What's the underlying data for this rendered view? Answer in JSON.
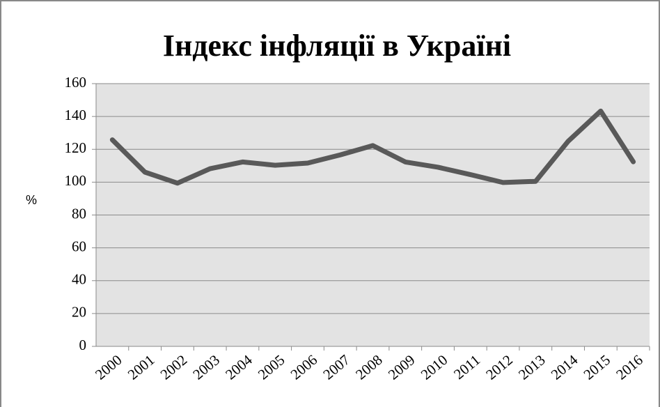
{
  "chart_data": {
    "type": "line",
    "title": "Індекс інфляції в Україні",
    "y_label": "%",
    "categories": [
      "2000",
      "2001",
      "2002",
      "2003",
      "2004",
      "2005",
      "2006",
      "2007",
      "2008",
      "2009",
      "2010",
      "2011",
      "2012",
      "2013",
      "2014",
      "2015",
      "2016"
    ],
    "values": [
      125.8,
      106.1,
      99.4,
      108.2,
      112.3,
      110.3,
      111.6,
      116.6,
      122.3,
      112.3,
      109.1,
      104.6,
      99.8,
      100.5,
      124.9,
      143.3,
      112.4
    ],
    "color": "#595959",
    "ylim": [
      0,
      160
    ],
    "yticks": [
      0,
      20,
      40,
      60,
      80,
      100,
      120,
      140,
      160
    ],
    "grid": true
  }
}
